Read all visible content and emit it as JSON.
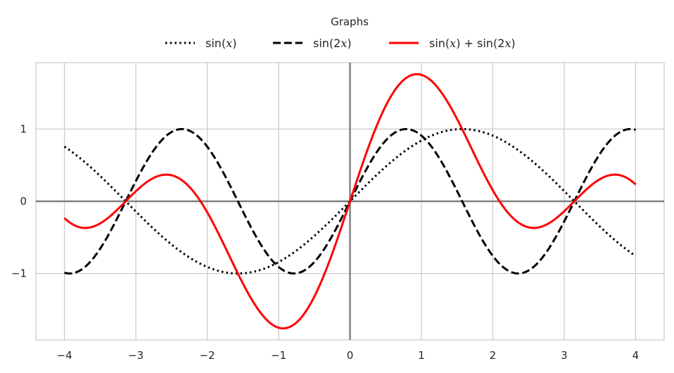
{
  "chart_data": {
    "type": "line",
    "title": "",
    "xlabel": "",
    "ylabel": "",
    "xlim": [
      -4.4,
      4.4
    ],
    "ylim": [
      -1.92,
      1.92
    ],
    "xticks": [
      -4,
      -3,
      -2,
      -1,
      0,
      1,
      2,
      3,
      4
    ],
    "yticks": [
      -1,
      0,
      1
    ],
    "x_tick_labels": [
      "−4",
      "−3",
      "−2",
      "−1",
      "0",
      "1",
      "2",
      "3",
      "4"
    ],
    "y_tick_labels": [
      "−1",
      "0",
      "1"
    ],
    "grid": true,
    "axis_lines_at_zero": true,
    "x_domain": [
      -4,
      4
    ],
    "legend": {
      "title": "Graphs",
      "placement": "top-center, outside plot",
      "entries": [
        "sin(x)",
        "sin(2x)",
        "sin(x) + sin(2x)"
      ]
    },
    "series": [
      {
        "name": "sin(x)",
        "style": "dotted",
        "color": "#000000",
        "x": [
          -4,
          -3.5,
          -3,
          -2.5,
          -2,
          -1.5708,
          -1.5,
          -1,
          -0.5,
          0,
          0.5,
          1,
          1.5,
          1.5708,
          2,
          2.5,
          3,
          3.5,
          4
        ],
        "values": [
          0.757,
          0.351,
          -0.141,
          -0.598,
          -0.909,
          -1.0,
          -0.997,
          -0.841,
          -0.479,
          0,
          0.479,
          0.841,
          0.997,
          1.0,
          0.909,
          0.598,
          0.141,
          -0.351,
          -0.757
        ]
      },
      {
        "name": "sin(2x)",
        "style": "dashed",
        "color": "#000000",
        "x": [
          -4,
          -3.927,
          -3.5,
          -3,
          -2.5,
          -2.356,
          -2,
          -1.5,
          -1,
          -0.785,
          -0.5,
          0,
          0.5,
          0.785,
          1,
          1.5,
          2,
          2.356,
          2.5,
          3,
          3.5,
          3.927,
          4
        ],
        "values": [
          -0.989,
          -1.0,
          -0.657,
          0.279,
          0.959,
          1.0,
          0.757,
          -0.141,
          -0.909,
          -1.0,
          -0.841,
          0,
          0.841,
          1.0,
          0.909,
          0.141,
          -0.757,
          -1.0,
          -0.959,
          -0.279,
          0.657,
          1.0,
          0.989
        ]
      },
      {
        "name": "sin(x) + sin(2x)",
        "style": "solid",
        "color": "#ff0000",
        "x": [
          -4,
          -3.7,
          -3.5,
          -3,
          -2.57,
          -2.5,
          -2,
          -1.5,
          -1,
          -0.94,
          -0.5,
          0,
          0.5,
          0.94,
          1,
          1.5,
          2,
          2.5,
          2.57,
          3,
          3.5,
          3.7,
          4
        ],
        "values": [
          -0.232,
          -0.37,
          -0.306,
          0.138,
          0.37,
          0.361,
          -0.152,
          -1.139,
          -1.751,
          -1.76,
          -1.32,
          0,
          1.32,
          1.76,
          1.751,
          1.139,
          0.152,
          -0.361,
          -0.37,
          -0.138,
          0.306,
          0.37,
          0.232
        ]
      }
    ],
    "colors": {
      "grid": "#cccccc",
      "zero_axes": "#808080",
      "sin_x": "#000000",
      "sin_2x": "#000000",
      "sum": "#ff0000"
    }
  }
}
